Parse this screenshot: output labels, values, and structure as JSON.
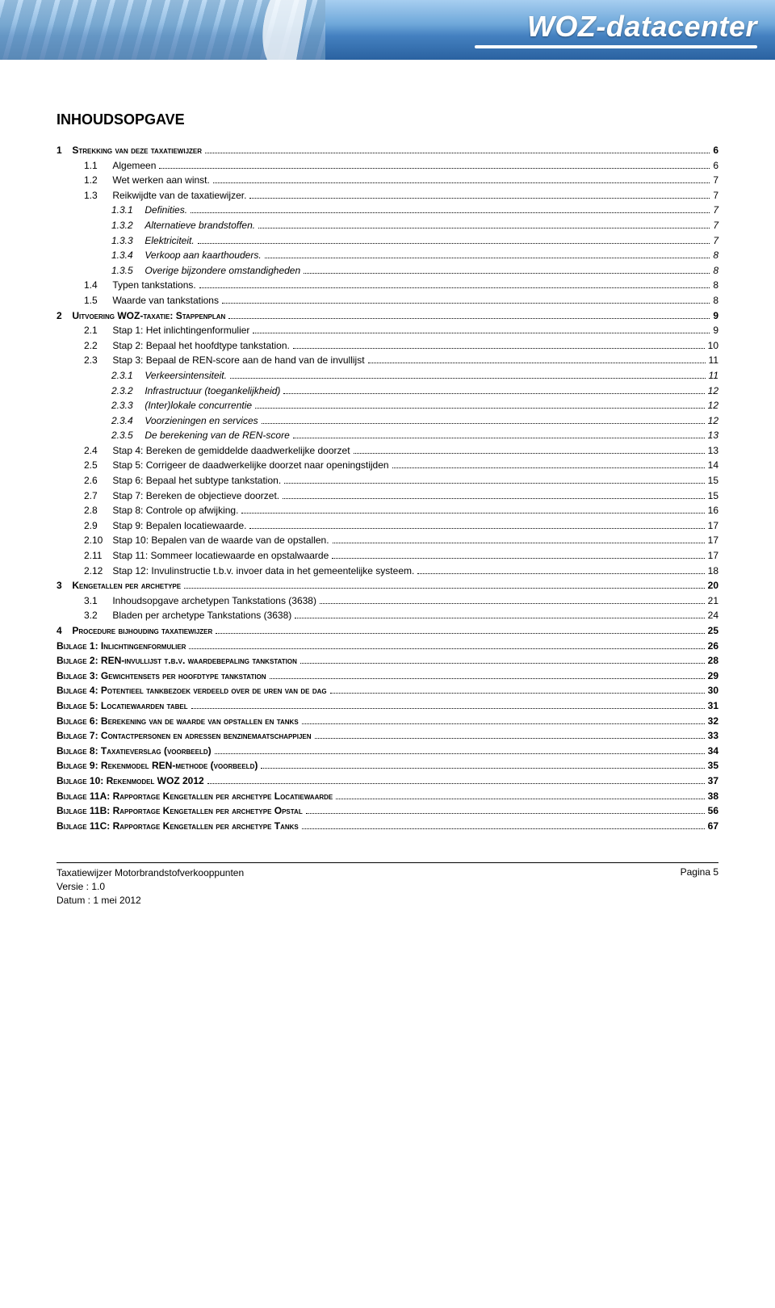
{
  "banner": {
    "title": "WOZ-datacenter"
  },
  "toc_title": "INHOUDSOPGAVE",
  "footer": {
    "doc": "Taxatiewijzer Motorbrandstofverkooppunten",
    "version": "Versie : 1.0",
    "date": "Datum : 1 mei 2012",
    "page": "Pagina 5"
  },
  "toc": [
    {
      "lvl": 0,
      "num": "1",
      "label": "Strekking van deze taxatiewijzer",
      "page": "6"
    },
    {
      "lvl": 1,
      "num": "1.1",
      "label": "Algemeen",
      "page": "6"
    },
    {
      "lvl": 1,
      "num": "1.2",
      "label": "Wet werken aan winst.",
      "page": "7"
    },
    {
      "lvl": 1,
      "num": "1.3",
      "label": "Reikwijdte van de taxatiewijzer.",
      "page": "7"
    },
    {
      "lvl": 2,
      "num": "1.3.1",
      "label": "Definities.",
      "page": "7"
    },
    {
      "lvl": 2,
      "num": "1.3.2",
      "label": "Alternatieve brandstoffen.",
      "page": "7"
    },
    {
      "lvl": 2,
      "num": "1.3.3",
      "label": "Elektriciteit.",
      "page": "7"
    },
    {
      "lvl": 2,
      "num": "1.3.4",
      "label": "Verkoop aan kaarthouders.",
      "page": "8"
    },
    {
      "lvl": 2,
      "num": "1.3.5",
      "label": "Overige bijzondere omstandigheden",
      "page": "8"
    },
    {
      "lvl": 1,
      "num": "1.4",
      "label": "Typen tankstations.",
      "page": "8"
    },
    {
      "lvl": 1,
      "num": "1.5",
      "label": "Waarde van tankstations",
      "page": "8"
    },
    {
      "lvl": 0,
      "num": "2",
      "label": "Uitvoering WOZ-taxatie: Stappenplan",
      "page": "9"
    },
    {
      "lvl": 1,
      "num": "2.1",
      "label": "Stap 1: Het inlichtingenformulier",
      "page": "9"
    },
    {
      "lvl": 1,
      "num": "2.2",
      "label": "Stap 2: Bepaal het hoofdtype tankstation.",
      "page": "10"
    },
    {
      "lvl": 1,
      "num": "2.3",
      "label": "Stap 3: Bepaal de REN-score aan de hand van de invullijst",
      "page": "11"
    },
    {
      "lvl": 2,
      "num": "2.3.1",
      "label": "Verkeersintensiteit.",
      "page": "11"
    },
    {
      "lvl": 2,
      "num": "2.3.2",
      "label": "Infrastructuur (toegankelijkheid)",
      "page": "12"
    },
    {
      "lvl": 2,
      "num": "2.3.3",
      "label": "(Inter)lokale concurrentie",
      "page": "12"
    },
    {
      "lvl": 2,
      "num": "2.3.4",
      "label": "Voorzieningen en services",
      "page": "12"
    },
    {
      "lvl": 2,
      "num": "2.3.5",
      "label": "De berekening van de REN-score",
      "page": "13"
    },
    {
      "lvl": 1,
      "num": "2.4",
      "label": "Stap 4: Bereken de gemiddelde daadwerkelijke doorzet",
      "page": "13"
    },
    {
      "lvl": 1,
      "num": "2.5",
      "label": "Stap 5: Corrigeer de daadwerkelijke doorzet naar openingstijden",
      "page": "14"
    },
    {
      "lvl": 1,
      "num": "2.6",
      "label": "Stap 6: Bepaal het subtype tankstation.",
      "page": "15"
    },
    {
      "lvl": 1,
      "num": "2.7",
      "label": "Stap 7: Bereken de objectieve doorzet.",
      "page": "15"
    },
    {
      "lvl": 1,
      "num": "2.8",
      "label": "Stap 8: Controle op afwijking.",
      "page": "16"
    },
    {
      "lvl": 1,
      "num": "2.9",
      "label": "Stap 9: Bepalen locatiewaarde.",
      "page": "17"
    },
    {
      "lvl": 1,
      "num": "2.10",
      "label": "Stap 10: Bepalen van de waarde van de opstallen.",
      "page": "17"
    },
    {
      "lvl": 1,
      "num": "2.11",
      "label": "Stap 11: Sommeer locatiewaarde en opstalwaarde",
      "page": "17"
    },
    {
      "lvl": 1,
      "num": "2.12",
      "label": "Stap 12: Invulinstructie t.b.v. invoer data in het gemeentelijke systeem.",
      "page": "18"
    },
    {
      "lvl": 0,
      "num": "3",
      "label": "Kengetallen per archetype",
      "page": "20"
    },
    {
      "lvl": 1,
      "num": "3.1",
      "label": "Inhoudsopgave archetypen Tankstations (3638)",
      "page": "21"
    },
    {
      "lvl": 1,
      "num": "3.2",
      "label": "Bladen per archetype Tankstations (3638)",
      "page": "24"
    },
    {
      "lvl": 0,
      "num": "4",
      "label": "Procedure bijhouding taxatiewijzer",
      "page": "25"
    },
    {
      "lvl": 0,
      "bij": true,
      "label": "Bijlage 1: Inlichtingenformulier",
      "page": "26"
    },
    {
      "lvl": 0,
      "bij": true,
      "label": "Bijlage 2: REN-invullijst t.b.v. waardebepaling tankstation",
      "page": "28"
    },
    {
      "lvl": 0,
      "bij": true,
      "label": "Bijlage 3: Gewichtensets per hoofdtype tankstation",
      "page": "29"
    },
    {
      "lvl": 0,
      "bij": true,
      "label": "Bijlage 4: Potentieel tankbezoek verdeeld over de uren van de dag",
      "page": "30"
    },
    {
      "lvl": 0,
      "bij": true,
      "label": "Bijlage 5: Locatiewaarden tabel",
      "page": "31"
    },
    {
      "lvl": 0,
      "bij": true,
      "label": "Bijlage 6: Berekening van de waarde van opstallen en tanks",
      "page": "32"
    },
    {
      "lvl": 0,
      "bij": true,
      "label": "Bijlage 7: Contactpersonen en adressen benzinemaatschappijen",
      "page": "33"
    },
    {
      "lvl": 0,
      "bij": true,
      "label": "Bijlage 8: Taxatieverslag (voorbeeld)",
      "page": "34"
    },
    {
      "lvl": 0,
      "bij": true,
      "label": "Bijlage 9: Rekenmodel REN-methode (voorbeeld)",
      "page": "35"
    },
    {
      "lvl": 0,
      "bij": true,
      "label": "Bijlage 10: Rekenmodel WOZ 2012",
      "page": "37"
    },
    {
      "lvl": 0,
      "bij": true,
      "label": "Bijlage 11A: Rapportage Kengetallen per archetype Locatiewaarde",
      "page": "38"
    },
    {
      "lvl": 0,
      "bij": true,
      "label": "Bijlage 11B: Rapportage Kengetallen per archetype Opstal",
      "page": "56"
    },
    {
      "lvl": 0,
      "bij": true,
      "label": "Bijlage 11C: Rapportage Kengetallen per archetype Tanks",
      "page": "67"
    }
  ]
}
